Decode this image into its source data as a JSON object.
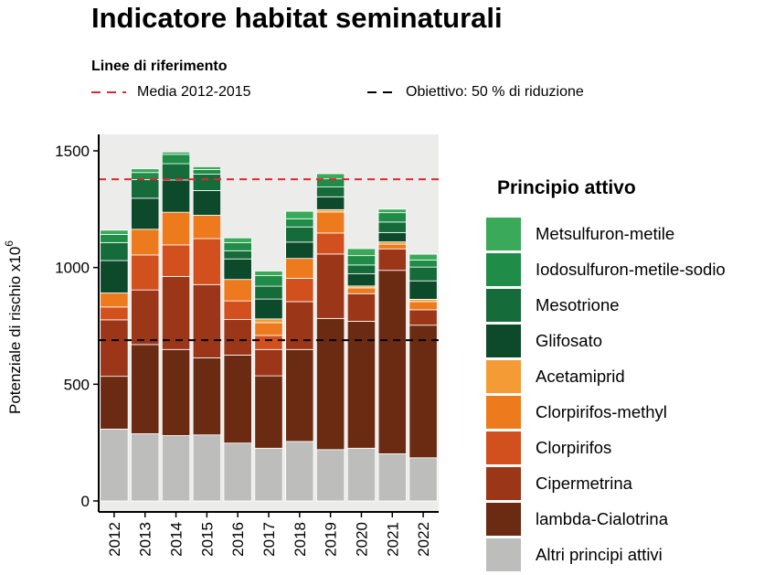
{
  "page": {
    "title": "Indicatore habitat seminaturali",
    "reference_heading": "Linee di riferimento",
    "reference_lines": [
      {
        "label": "Media 2012-2015",
        "color": "#e3262b",
        "value": 1378
      },
      {
        "label": "Obiettivo: 50 % di riduzione",
        "color": "#000000",
        "value": 689
      }
    ],
    "legend_title": "Principio attivo"
  },
  "chart_data": {
    "type": "bar",
    "stacked": true,
    "title": "Indicatore habitat seminaturali",
    "xlabel": "",
    "ylabel": "Potenziale di rischio x10",
    "ylabel_superscript": "6",
    "ylim": [
      0,
      1500
    ],
    "yticks": [
      0,
      500,
      1000,
      1500
    ],
    "grid": false,
    "legend_position": "right",
    "categories": [
      "2012",
      "2013",
      "2014",
      "2015",
      "2016",
      "2017",
      "2018",
      "2019",
      "2020",
      "2021",
      "2022"
    ],
    "series": [
      {
        "name": "Altri principi attivi",
        "color": "#bdbdbb",
        "values": [
          308,
          288,
          280,
          283,
          248,
          226,
          255,
          220,
          226,
          202,
          185
        ]
      },
      {
        "name": "lambda-Cialotrina",
        "color": "#6b2a12",
        "values": [
          226,
          382,
          369,
          330,
          377,
          310,
          394,
          562,
          544,
          786,
          568
        ]
      },
      {
        "name": "Cipermetrina",
        "color": "#9c3619",
        "values": [
          242,
          234,
          313,
          314,
          152,
          113,
          205,
          276,
          118,
          92,
          66
        ]
      },
      {
        "name": "Clorpirifos",
        "color": "#d2501d",
        "values": [
          55,
          150,
          135,
          197,
          80,
          60,
          100,
          90,
          0,
          0,
          0
        ]
      },
      {
        "name": "Clorpirifos-methyl",
        "color": "#ed7a1c",
        "values": [
          60,
          110,
          140,
          100,
          92,
          55,
          85,
          90,
          25,
          20,
          35
        ]
      },
      {
        "name": "Acetamiprid",
        "color": "#f59b36",
        "values": [
          0,
          0,
          0,
          0,
          0,
          16,
          0,
          10,
          8,
          10,
          10
        ]
      },
      {
        "name": "Glifosato",
        "color": "#0d4a2b",
        "values": [
          139,
          133,
          138,
          106,
          88,
          85,
          70,
          55,
          52,
          40,
          79
        ]
      },
      {
        "name": "Mesotrione",
        "color": "#156b39",
        "values": [
          77,
          80,
          70,
          70,
          35,
          55,
          65,
          42,
          38,
          45,
          59
        ]
      },
      {
        "name": "Iodosulfuron-metile-sodio",
        "color": "#1f8c47",
        "values": [
          35,
          30,
          40,
          20,
          35,
          45,
          35,
          35,
          40,
          40,
          30
        ]
      },
      {
        "name": "Metsulfuron-metile",
        "color": "#3aa95a",
        "values": [
          18,
          16,
          10,
          12,
          20,
          20,
          32,
          22,
          30,
          15,
          25
        ]
      }
    ]
  }
}
